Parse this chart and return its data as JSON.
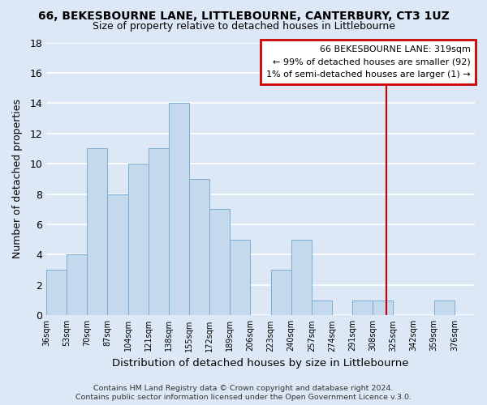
{
  "title_line1": "66, BEKESBOURNE LANE, LITTLEBOURNE, CANTERBURY, CT3 1UZ",
  "title_line2": "Size of property relative to detached houses in Littlebourne",
  "xlabel": "Distribution of detached houses by size in Littlebourne",
  "ylabel": "Number of detached properties",
  "footnote1": "Contains HM Land Registry data © Crown copyright and database right 2024.",
  "footnote2": "Contains public sector information licensed under the Open Government Licence v.3.0.",
  "bin_edges": [
    36,
    53,
    70,
    87,
    104,
    121,
    138,
    155,
    172,
    189,
    206,
    223,
    240,
    257,
    274,
    291,
    308,
    325,
    342,
    359,
    376,
    393
  ],
  "bar_heights": [
    3,
    4,
    11,
    8,
    10,
    11,
    14,
    9,
    7,
    5,
    0,
    3,
    5,
    1,
    0,
    1,
    1,
    0,
    0,
    1,
    0
  ],
  "bar_color": "#c5d9ed",
  "bar_edgecolor": "#7aadd4",
  "property_value": 319,
  "vline_color": "#cc0000",
  "legend_title": "66 BEKESBOURNE LANE: 319sqm",
  "legend_line1": "← 99% of detached houses are smaller (92)",
  "legend_line2": "1% of semi-detached houses are larger (1) →",
  "legend_box_edgecolor": "#cc0000",
  "legend_box_facecolor": "#ffffff",
  "ylim": [
    0,
    18
  ],
  "yticks": [
    0,
    2,
    4,
    6,
    8,
    10,
    12,
    14,
    16,
    18
  ],
  "tick_labels": [
    "36sqm",
    "53sqm",
    "70sqm",
    "87sqm",
    "104sqm",
    "121sqm",
    "138sqm",
    "155sqm",
    "172sqm",
    "189sqm",
    "206sqm",
    "223sqm",
    "240sqm",
    "257sqm",
    "274sqm",
    "291sqm",
    "308sqm",
    "325sqm",
    "342sqm",
    "359sqm",
    "376sqm"
  ],
  "background_color": "#dce8f5",
  "grid_color": "#ffffff",
  "plot_bg_color": "#dce8f5"
}
